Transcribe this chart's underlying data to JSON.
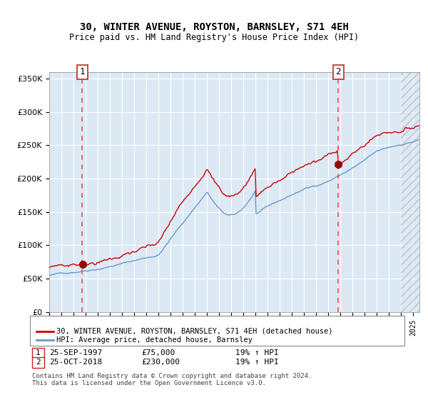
{
  "title": "30, WINTER AVENUE, ROYSTON, BARNSLEY, S71 4EH",
  "subtitle": "Price paid vs. HM Land Registry's House Price Index (HPI)",
  "background_color": "#dce9f5",
  "plot_bg_color": "#dce9f5",
  "x_start_year": 1995,
  "x_end_year": 2025,
  "ylim": [
    0,
    360000
  ],
  "yticks": [
    0,
    50000,
    100000,
    150000,
    200000,
    250000,
    300000,
    350000
  ],
  "sale1_date": 1997.73,
  "sale1_price": 75000,
  "sale2_date": 2018.81,
  "sale2_price": 230000,
  "legend_line1": "30, WINTER AVENUE, ROYSTON, BARNSLEY, S71 4EH (detached house)",
  "legend_line2": "HPI: Average price, detached house, Barnsley",
  "annotation1_label": "1",
  "annotation1_date": "25-SEP-1997",
  "annotation1_price": "£75,000",
  "annotation1_hpi": "19% ↑ HPI",
  "annotation2_label": "2",
  "annotation2_date": "25-OCT-2018",
  "annotation2_price": "£230,000",
  "annotation2_hpi": "19% ↑ HPI",
  "footer": "Contains HM Land Registry data © Crown copyright and database right 2024.\nThis data is licensed under the Open Government Licence v3.0.",
  "red_line_color": "#cc0000",
  "blue_line_color": "#6699cc",
  "dashed_line_color": "#ff4444",
  "marker_color": "#990000",
  "grid_color": "#ffffff",
  "box_color": "#cc2222"
}
